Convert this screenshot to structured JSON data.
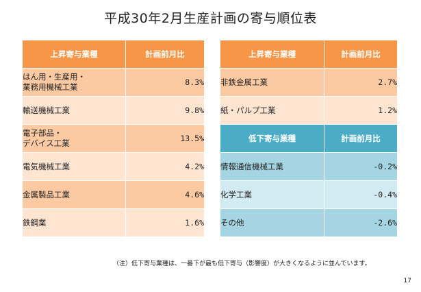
{
  "title": "平成30年2月生産計画の寄与順位表",
  "left_table": {
    "header": {
      "industry": "上昇寄与業種",
      "ratio": "計画前月比"
    },
    "rows": [
      {
        "industry": "はん用・生産用・\n業務用機械工業",
        "ratio": "8.3%"
      },
      {
        "industry": "輸送機械工業",
        "ratio": "9.8%"
      },
      {
        "industry": "電子部品・\nデバイス工業",
        "ratio": "13.5%"
      },
      {
        "industry": "電気機械工業",
        "ratio": "4.2%"
      },
      {
        "industry": "金属製品工業",
        "ratio": "4.6%"
      },
      {
        "industry": "鉄鋼業",
        "ratio": "1.6%"
      }
    ]
  },
  "right_up_table": {
    "header": {
      "industry": "上昇寄与業種",
      "ratio": "計画前月比"
    },
    "rows": [
      {
        "industry": "非鉄金属工業",
        "ratio": "2.7%"
      },
      {
        "industry": "紙・パルプ工業",
        "ratio": "1.2%"
      }
    ]
  },
  "right_down_table": {
    "header": {
      "industry": "低下寄与業種",
      "ratio": "計画前月比"
    },
    "rows": [
      {
        "industry": "情報通信機械工業",
        "ratio": "-0.2%"
      },
      {
        "industry": "化学工業",
        "ratio": "-0.4%"
      },
      {
        "industry": "その他",
        "ratio": "-2.6%"
      }
    ]
  },
  "note": "（注）低下寄与業種は、一番下が最も低下寄与（影響度）が大きくなるように並んでいます。",
  "page_number": "17",
  "colors": {
    "orange_header": "#f79646",
    "orange_dark": "#fbcaa3",
    "orange_light": "#fde5d2",
    "blue_header": "#4bacc6",
    "blue_dark": "#a5d5e2",
    "blue_light": "#d2eaf1"
  }
}
